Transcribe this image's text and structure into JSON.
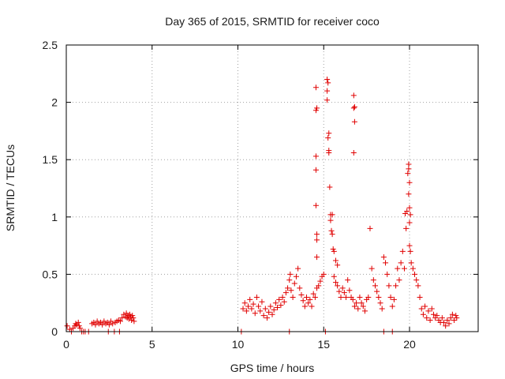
{
  "chart_data": {
    "type": "scatter",
    "title": "Day 365 of 2015, SRMTID for receiver coco",
    "xlabel": "GPS time / hours",
    "ylabel": "SRMTID / TECUs",
    "xlim": [
      0,
      24
    ],
    "ylim": [
      0,
      2.5
    ],
    "xticks": [
      0,
      5,
      10,
      15,
      20
    ],
    "xtick_labels": [
      "0",
      "5",
      "10",
      "15",
      "20"
    ],
    "yticks": [
      0,
      0.5,
      1,
      1.5,
      2,
      2.5
    ],
    "ytick_labels": [
      "0",
      "0.5",
      "1",
      "1.5",
      "2",
      "2.5"
    ],
    "grid": true,
    "marker": "+",
    "color": "#e00000",
    "series": [
      {
        "name": "SRMTID",
        "points": [
          [
            0.05,
            0.05
          ],
          [
            0.2,
            0.02
          ],
          [
            0.3,
            0.0
          ],
          [
            0.4,
            0.03
          ],
          [
            0.5,
            0.05
          ],
          [
            0.55,
            0.07
          ],
          [
            0.6,
            0.06
          ],
          [
            0.7,
            0.08
          ],
          [
            0.75,
            0.05
          ],
          [
            0.8,
            0.03
          ],
          [
            0.9,
            0.0
          ],
          [
            1.0,
            0.0
          ],
          [
            1.1,
            0.0
          ],
          [
            1.3,
            0.0
          ],
          [
            1.5,
            0.07
          ],
          [
            1.6,
            0.08
          ],
          [
            1.7,
            0.06
          ],
          [
            1.8,
            0.09
          ],
          [
            1.9,
            0.07
          ],
          [
            2.0,
            0.08
          ],
          [
            2.1,
            0.06
          ],
          [
            2.2,
            0.09
          ],
          [
            2.3,
            0.07
          ],
          [
            2.4,
            0.08
          ],
          [
            2.5,
            0.06
          ],
          [
            2.6,
            0.09
          ],
          [
            2.7,
            0.07
          ],
          [
            2.45,
            0.0
          ],
          [
            2.8,
            0.0
          ],
          [
            3.1,
            0.0
          ],
          [
            2.85,
            0.08
          ],
          [
            2.95,
            0.09
          ],
          [
            3.05,
            0.1
          ],
          [
            3.15,
            0.09
          ],
          [
            3.25,
            0.12
          ],
          [
            3.35,
            0.15
          ],
          [
            3.45,
            0.13
          ],
          [
            3.5,
            0.16
          ],
          [
            3.55,
            0.12
          ],
          [
            3.6,
            0.14
          ],
          [
            3.65,
            0.11
          ],
          [
            3.7,
            0.15
          ],
          [
            3.75,
            0.13
          ],
          [
            3.8,
            0.1
          ],
          [
            3.85,
            0.14
          ],
          [
            3.9,
            0.12
          ],
          [
            3.95,
            0.09
          ],
          [
            10.2,
            0.0
          ],
          [
            13.0,
            0.0
          ],
          [
            15.1,
            0.0
          ],
          [
            18.5,
            0.0
          ],
          [
            19.0,
            0.0
          ],
          [
            10.3,
            0.2
          ],
          [
            10.4,
            0.25
          ],
          [
            10.5,
            0.18
          ],
          [
            10.6,
            0.22
          ],
          [
            10.7,
            0.28
          ],
          [
            10.8,
            0.2
          ],
          [
            10.9,
            0.24
          ],
          [
            11.0,
            0.16
          ],
          [
            11.1,
            0.3
          ],
          [
            11.2,
            0.22
          ],
          [
            11.3,
            0.18
          ],
          [
            11.4,
            0.26
          ],
          [
            11.5,
            0.14
          ],
          [
            11.6,
            0.2
          ],
          [
            11.7,
            0.12
          ],
          [
            11.8,
            0.17
          ],
          [
            11.9,
            0.22
          ],
          [
            12.0,
            0.15
          ],
          [
            12.1,
            0.19
          ],
          [
            12.2,
            0.25
          ],
          [
            12.3,
            0.21
          ],
          [
            12.4,
            0.28
          ],
          [
            12.5,
            0.23
          ],
          [
            12.6,
            0.3
          ],
          [
            12.7,
            0.26
          ],
          [
            12.8,
            0.34
          ],
          [
            12.9,
            0.38
          ],
          [
            13.0,
            0.45
          ],
          [
            13.05,
            0.5
          ],
          [
            13.1,
            0.36
          ],
          [
            13.2,
            0.3
          ],
          [
            13.3,
            0.42
          ],
          [
            13.4,
            0.48
          ],
          [
            13.5,
            0.55
          ],
          [
            13.6,
            0.38
          ],
          [
            13.7,
            0.32
          ],
          [
            13.8,
            0.27
          ],
          [
            13.9,
            0.22
          ],
          [
            14.0,
            0.3
          ],
          [
            14.1,
            0.25
          ],
          [
            14.2,
            0.28
          ],
          [
            14.3,
            0.22
          ],
          [
            14.4,
            0.33
          ],
          [
            14.5,
            0.3
          ],
          [
            14.6,
            0.38
          ],
          [
            14.7,
            0.4
          ],
          [
            14.8,
            0.44
          ],
          [
            14.9,
            0.48
          ],
          [
            15.0,
            0.5
          ],
          [
            14.55,
            2.13
          ],
          [
            14.6,
            1.95
          ],
          [
            14.55,
            1.93
          ],
          [
            14.55,
            1.53
          ],
          [
            14.55,
            1.41
          ],
          [
            14.55,
            1.1
          ],
          [
            14.6,
            0.85
          ],
          [
            14.6,
            0.8
          ],
          [
            14.6,
            0.65
          ],
          [
            15.2,
            2.2
          ],
          [
            15.25,
            2.17
          ],
          [
            15.2,
            2.1
          ],
          [
            15.2,
            2.02
          ],
          [
            15.3,
            1.73
          ],
          [
            15.25,
            1.69
          ],
          [
            15.3,
            1.58
          ],
          [
            15.3,
            1.56
          ],
          [
            15.35,
            1.26
          ],
          [
            15.4,
            1.02
          ],
          [
            15.5,
            1.02
          ],
          [
            15.4,
            0.97
          ],
          [
            15.45,
            0.88
          ],
          [
            15.5,
            0.85
          ],
          [
            15.55,
            0.72
          ],
          [
            15.6,
            0.7
          ],
          [
            15.7,
            0.62
          ],
          [
            15.8,
            0.58
          ],
          [
            15.6,
            0.48
          ],
          [
            15.7,
            0.43
          ],
          [
            15.8,
            0.4
          ],
          [
            15.9,
            0.35
          ],
          [
            16.0,
            0.3
          ],
          [
            16.1,
            0.38
          ],
          [
            16.2,
            0.34
          ],
          [
            16.3,
            0.3
          ],
          [
            16.4,
            0.45
          ],
          [
            16.5,
            0.36
          ],
          [
            16.6,
            0.3
          ],
          [
            16.75,
            2.06
          ],
          [
            16.8,
            1.96
          ],
          [
            16.75,
            1.95
          ],
          [
            16.8,
            1.83
          ],
          [
            16.75,
            1.56
          ],
          [
            16.7,
            0.28
          ],
          [
            16.8,
            0.22
          ],
          [
            16.9,
            0.25
          ],
          [
            17.0,
            0.2
          ],
          [
            17.1,
            0.3
          ],
          [
            17.2,
            0.25
          ],
          [
            17.3,
            0.22
          ],
          [
            17.4,
            0.18
          ],
          [
            17.5,
            0.28
          ],
          [
            17.6,
            0.3
          ],
          [
            17.7,
            0.9
          ],
          [
            17.8,
            0.55
          ],
          [
            17.9,
            0.45
          ],
          [
            18.0,
            0.4
          ],
          [
            18.1,
            0.35
          ],
          [
            18.2,
            0.3
          ],
          [
            18.3,
            0.25
          ],
          [
            18.4,
            0.2
          ],
          [
            18.5,
            0.65
          ],
          [
            18.6,
            0.6
          ],
          [
            18.7,
            0.5
          ],
          [
            18.8,
            0.4
          ],
          [
            18.9,
            0.3
          ],
          [
            19.0,
            0.22
          ],
          [
            19.1,
            0.28
          ],
          [
            19.2,
            0.4
          ],
          [
            19.3,
            0.55
          ],
          [
            19.4,
            0.45
          ],
          [
            19.5,
            0.6
          ],
          [
            19.6,
            0.7
          ],
          [
            19.7,
            0.55
          ],
          [
            19.75,
            1.03
          ],
          [
            19.8,
            0.9
          ],
          [
            19.85,
            1.05
          ],
          [
            19.9,
            1.38
          ],
          [
            19.95,
            1.42
          ],
          [
            19.95,
            1.46
          ],
          [
            20.0,
            1.3
          ],
          [
            19.95,
            1.2
          ],
          [
            20.0,
            1.08
          ],
          [
            20.05,
            1.02
          ],
          [
            20.0,
            0.95
          ],
          [
            20.0,
            0.75
          ],
          [
            20.05,
            0.7
          ],
          [
            20.1,
            0.6
          ],
          [
            20.2,
            0.55
          ],
          [
            20.3,
            0.5
          ],
          [
            20.4,
            0.45
          ],
          [
            20.5,
            0.4
          ],
          [
            20.6,
            0.3
          ],
          [
            20.7,
            0.2
          ],
          [
            20.8,
            0.15
          ],
          [
            20.9,
            0.22
          ],
          [
            21.0,
            0.12
          ],
          [
            21.1,
            0.18
          ],
          [
            21.2,
            0.1
          ],
          [
            21.3,
            0.2
          ],
          [
            21.4,
            0.15
          ],
          [
            21.5,
            0.12
          ],
          [
            21.6,
            0.14
          ],
          [
            21.7,
            0.1
          ],
          [
            21.8,
            0.08
          ],
          [
            21.9,
            0.12
          ],
          [
            22.0,
            0.08
          ],
          [
            22.1,
            0.05
          ],
          [
            22.2,
            0.1
          ],
          [
            22.3,
            0.07
          ],
          [
            22.4,
            0.12
          ],
          [
            22.5,
            0.15
          ],
          [
            22.6,
            0.1
          ],
          [
            22.7,
            0.14
          ],
          [
            22.75,
            0.12
          ]
        ]
      }
    ]
  }
}
